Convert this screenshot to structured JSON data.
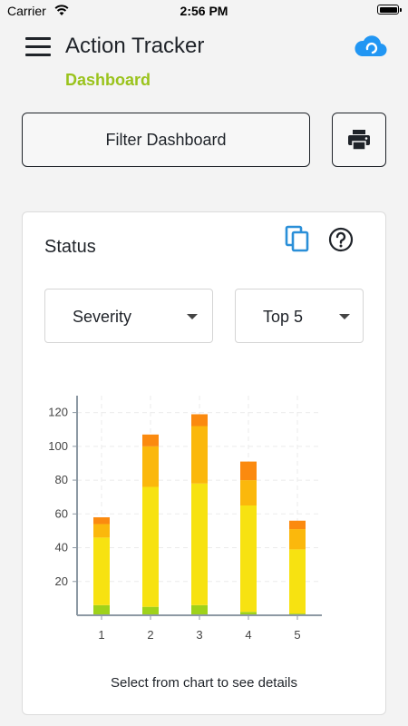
{
  "status_bar": {
    "carrier": "Carrier",
    "time": "2:56 PM"
  },
  "header": {
    "title": "Action Tracker",
    "subtitle": "Dashboard",
    "subtitle_color": "#9ac31c",
    "menu_icon": "hamburger-menu-icon",
    "sync_icon": "cloud-sync-icon",
    "sync_color": "#2196f3"
  },
  "toolbar": {
    "filter_label": "Filter Dashboard",
    "print_icon": "printer-icon"
  },
  "status_card": {
    "title": "Status",
    "copy_icon": "copy-icon",
    "help_icon": "help-circle-icon",
    "severity_select": "Severity",
    "top_select": "Top 5",
    "hint": "Select from chart to see details"
  },
  "chart_data": {
    "type": "bar",
    "stacked": true,
    "categories": [
      "1",
      "2",
      "3",
      "4",
      "5"
    ],
    "ylim": [
      0,
      130
    ],
    "yticks": [
      20,
      40,
      60,
      80,
      100,
      120
    ],
    "grid": true,
    "series": [
      {
        "color": "#9fd21a",
        "values": [
          6,
          5,
          6,
          2,
          1
        ]
      },
      {
        "color": "#f7e211",
        "values": [
          40,
          71,
          72,
          63,
          38
        ]
      },
      {
        "color": "#fbb80c",
        "values": [
          8,
          24,
          34,
          15,
          12
        ]
      },
      {
        "color": "#fb8a0f",
        "values": [
          4,
          7,
          7,
          11,
          5
        ]
      }
    ]
  }
}
